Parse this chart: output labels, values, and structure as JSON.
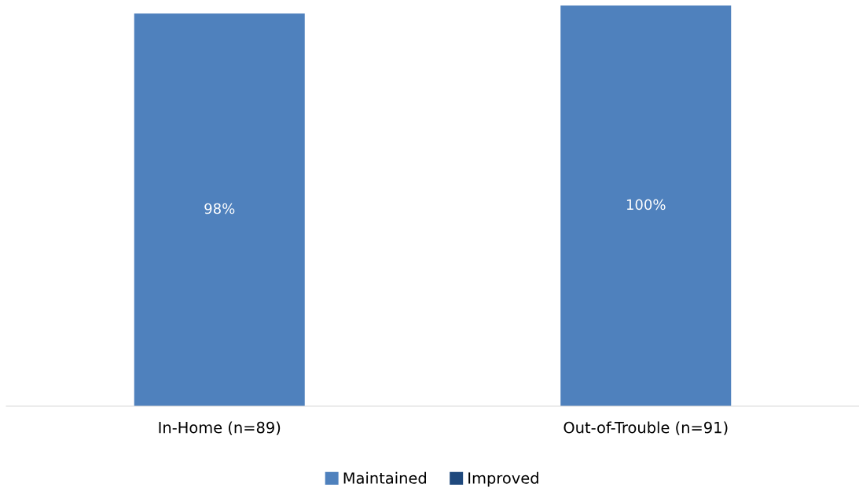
{
  "chart_data": {
    "type": "bar",
    "stacked": true,
    "categories": [
      "In-Home (n=89)",
      "Out-of-Trouble (n=91)"
    ],
    "series": [
      {
        "name": "Maintained",
        "color": "#4f81bd",
        "values": [
          98,
          100
        ],
        "value_labels": [
          "98%",
          "100%"
        ]
      },
      {
        "name": "Improved",
        "color": "#1f497d",
        "values": [
          null,
          null
        ]
      }
    ],
    "legend": "bottom",
    "grid": false
  }
}
